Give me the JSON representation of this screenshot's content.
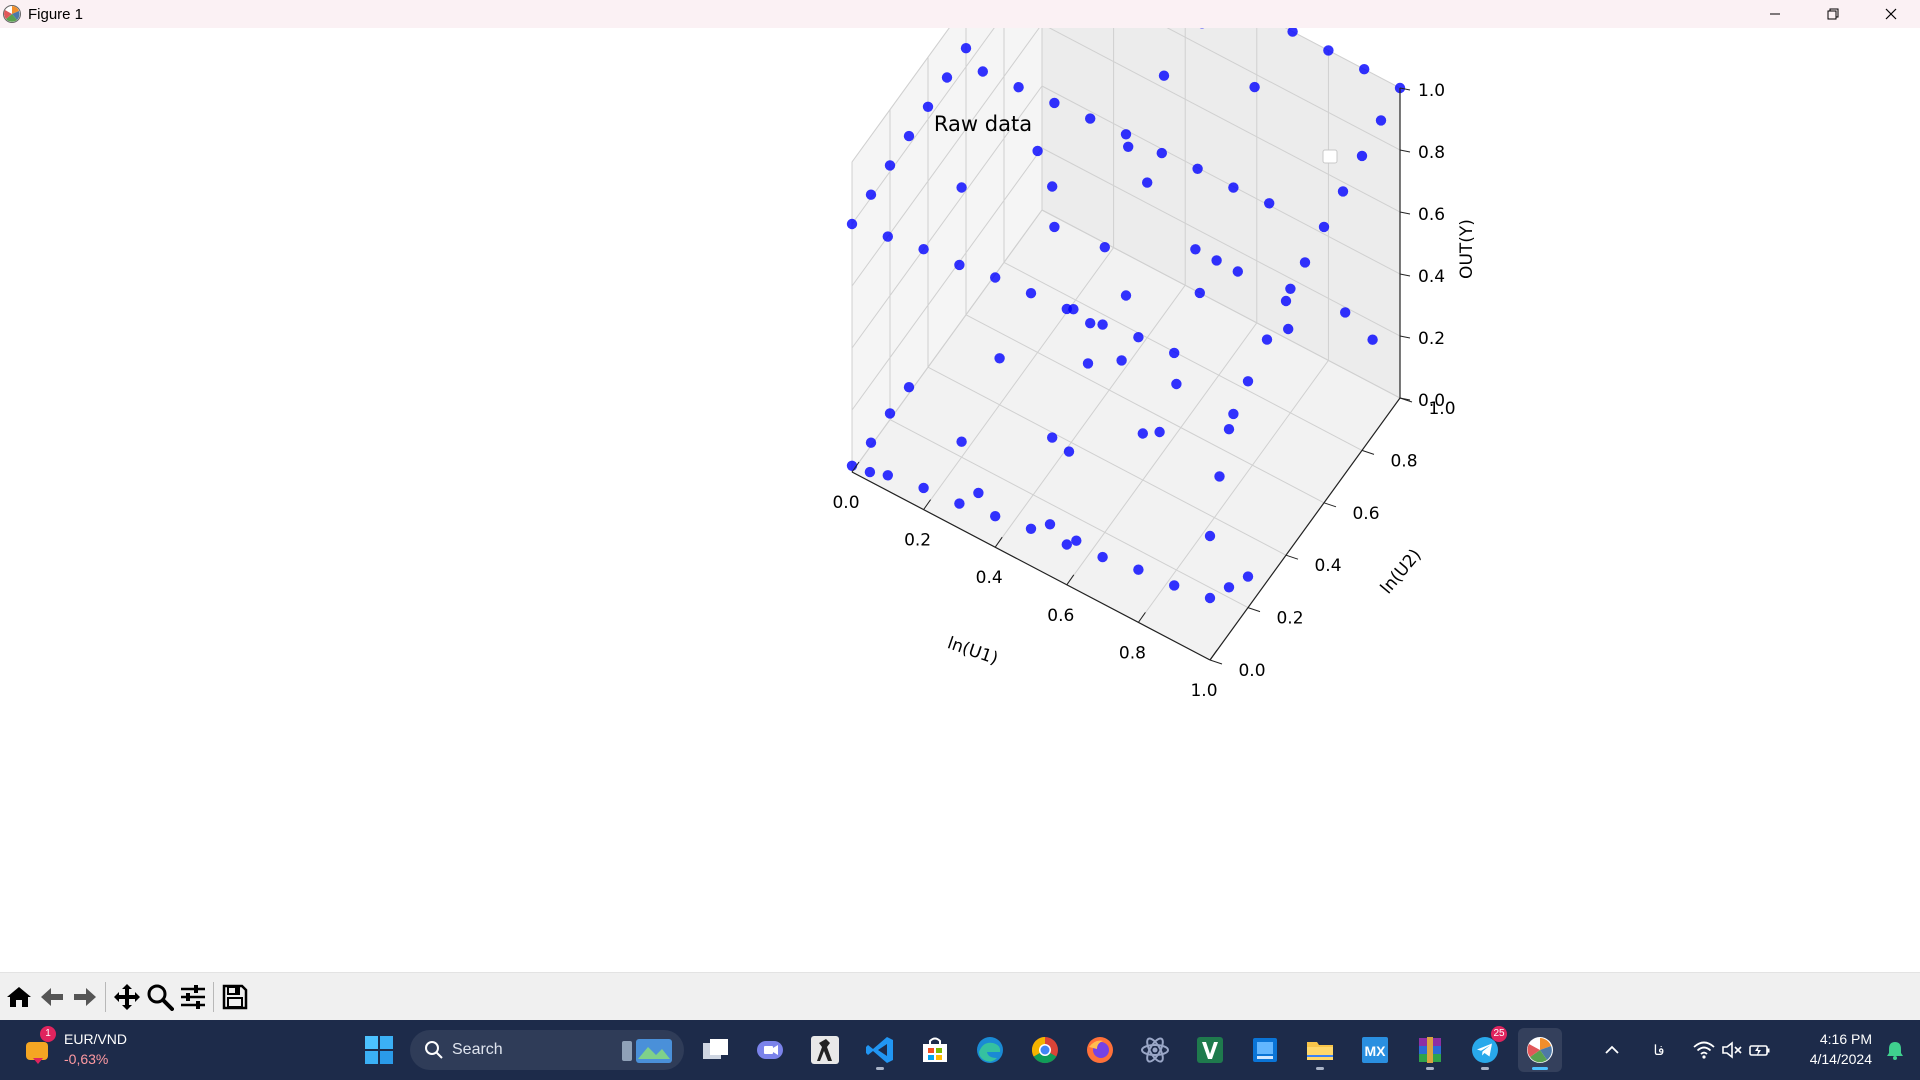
{
  "window": {
    "title": "Figure 1",
    "controls": [
      "minimize",
      "restore",
      "close"
    ]
  },
  "toolbar": {
    "buttons": [
      "home-icon",
      "back-icon",
      "forward-icon",
      "pan-icon",
      "zoom-icon",
      "configure-subplots-icon",
      "save-icon"
    ]
  },
  "chart_data": {
    "type": "scatter",
    "projection": "3d",
    "title": "Raw data",
    "xlabel": "ln(U1)",
    "ylabel": "ln(U2)",
    "zlabel": "OUT(Y)",
    "xlim": [
      0,
      1
    ],
    "ylim": [
      0,
      1
    ],
    "zlim": [
      0,
      1
    ],
    "xticks": [
      "0.0",
      "0.2",
      "0.4",
      "0.6",
      "0.8",
      "1.0"
    ],
    "yticks": [
      "0.0",
      "0.2",
      "0.4",
      "0.6",
      "0.8",
      "1.0"
    ],
    "zticks": [
      "0.0",
      "0.2",
      "0.4",
      "0.6",
      "0.8",
      "1.0"
    ],
    "grid": true,
    "legend": "top-right, empty",
    "marker_color": "#0000ff",
    "series": [
      {
        "points": [
          [
            0.0,
            1.0,
            0.92
          ],
          [
            0.1,
            1.0,
            0.93
          ],
          [
            0.2,
            1.0,
            0.95
          ],
          [
            0.3,
            1.0,
            0.96
          ],
          [
            0.4,
            1.0,
            0.97
          ],
          [
            0.5,
            1.0,
            0.98
          ],
          [
            0.6,
            1.0,
            0.99
          ],
          [
            0.7,
            1.0,
            1.0
          ],
          [
            0.8,
            1.0,
            1.0
          ],
          [
            0.9,
            1.0,
            1.0
          ],
          [
            1.0,
            1.0,
            1.0
          ],
          [
            0.0,
            0.9,
            0.9
          ],
          [
            0.0,
            0.8,
            0.88
          ],
          [
            0.0,
            0.7,
            0.87
          ],
          [
            0.0,
            0.6,
            0.86
          ],
          [
            0.0,
            0.5,
            0.85
          ],
          [
            0.0,
            0.4,
            0.84
          ],
          [
            0.0,
            0.3,
            0.83
          ],
          [
            0.0,
            0.2,
            0.82
          ],
          [
            0.0,
            0.1,
            0.81
          ],
          [
            0.0,
            0.0,
            0.8
          ],
          [
            1.0,
            0.9,
            0.98
          ],
          [
            1.0,
            0.8,
            0.95
          ],
          [
            1.0,
            0.7,
            0.92
          ],
          [
            1.0,
            0.6,
            0.89
          ],
          [
            1.0,
            0.5,
            0.86
          ],
          [
            1.0,
            0.4,
            0.82
          ],
          [
            1.0,
            0.3,
            0.78
          ],
          [
            1.0,
            0.2,
            0.73
          ],
          [
            1.0,
            0.1,
            0.66
          ],
          [
            1.0,
            0.05,
            0.55
          ],
          [
            1.0,
            0.0,
            0.4
          ],
          [
            0.1,
            0.0,
            0.82
          ],
          [
            0.2,
            0.0,
            0.84
          ],
          [
            0.3,
            0.0,
            0.85
          ],
          [
            0.4,
            0.0,
            0.87
          ],
          [
            0.5,
            0.0,
            0.88
          ],
          [
            0.6,
            0.0,
            0.89
          ],
          [
            0.7,
            0.0,
            0.9
          ],
          [
            0.8,
            0.0,
            0.92
          ],
          [
            0.9,
            0.0,
            0.93
          ],
          [
            0.1,
            0.5,
            0.93
          ],
          [
            0.2,
            0.5,
            0.94
          ],
          [
            0.3,
            0.5,
            0.95
          ],
          [
            0.4,
            0.5,
            0.96
          ],
          [
            0.5,
            0.5,
            0.97
          ],
          [
            0.6,
            0.5,
            0.97
          ],
          [
            0.7,
            0.5,
            0.98
          ],
          [
            0.8,
            0.5,
            0.98
          ],
          [
            0.9,
            0.5,
            0.99
          ],
          [
            0.3,
            0.8,
            0.98
          ],
          [
            0.5,
            0.7,
            0.99
          ],
          [
            0.7,
            0.8,
            0.99
          ],
          [
            0.4,
            0.3,
            0.91
          ],
          [
            0.6,
            0.2,
            0.92
          ],
          [
            0.8,
            0.3,
            0.95
          ],
          [
            0.2,
            0.2,
            0.87
          ],
          [
            0.2,
            0.8,
            0.94
          ],
          [
            0.5,
            0.9,
            0.99
          ],
          [
            0.0,
            0.0,
            0.02
          ],
          [
            0.05,
            0.0,
            0.03
          ],
          [
            0.1,
            0.0,
            0.05
          ],
          [
            0.2,
            0.0,
            0.07
          ],
          [
            0.3,
            0.0,
            0.08
          ],
          [
            0.4,
            0.0,
            0.1
          ],
          [
            0.5,
            0.0,
            0.12
          ],
          [
            0.6,
            0.0,
            0.13
          ],
          [
            0.7,
            0.0,
            0.15
          ],
          [
            0.8,
            0.0,
            0.17
          ],
          [
            0.9,
            0.0,
            0.18
          ],
          [
            1.0,
            0.0,
            0.2
          ],
          [
            0.0,
            0.1,
            0.01
          ],
          [
            0.0,
            0.2,
            0.02
          ],
          [
            0.0,
            0.3,
            0.02
          ],
          [
            1.0,
            0.1,
            0.15
          ],
          [
            1.0,
            0.2,
            0.1
          ],
          [
            0.5,
            0.1,
            0.05
          ],
          [
            0.6,
            0.05,
            0.1
          ],
          [
            0.3,
            0.1,
            0.03
          ],
          [
            0.2,
            0.2,
            0.05
          ],
          [
            0.4,
            0.3,
            0.1
          ],
          [
            0.6,
            0.4,
            0.15
          ],
          [
            0.5,
            0.2,
            0.2
          ],
          [
            0.7,
            0.3,
            0.3
          ],
          [
            0.8,
            0.5,
            0.25
          ],
          [
            0.3,
            0.6,
            0.2
          ],
          [
            0.4,
            0.5,
            0.3
          ],
          [
            0.6,
            0.7,
            0.35
          ],
          [
            0.8,
            0.8,
            0.4
          ],
          [
            0.2,
            0.4,
            0.15
          ],
          [
            0.9,
            0.6,
            0.5
          ],
          [
            0.3,
            0.5,
            0.55
          ],
          [
            0.5,
            0.5,
            0.45
          ],
          [
            0.7,
            0.6,
            0.6
          ],
          [
            0.4,
            0.8,
            0.5
          ],
          [
            0.9,
            0.9,
            0.3
          ],
          [
            0.95,
            0.95,
            0.2
          ],
          [
            0.6,
            0.9,
            0.25
          ],
          [
            0.5,
            0.3,
            0.4
          ],
          [
            0.2,
            0.6,
            0.65
          ],
          [
            0.8,
            0.2,
            0.6
          ],
          [
            0.7,
            0.1,
            0.7
          ],
          [
            0.4,
            0.7,
            0.7
          ]
        ]
      }
    ]
  },
  "taskbar": {
    "widget": {
      "pair": "EUR/VND",
      "change": "-0,63%",
      "badge": "1"
    },
    "search_label": "Search",
    "apps": [
      "start-icon",
      "search-field",
      "task-view-icon",
      "chat-icon",
      "counter-strike-icon",
      "vscode-icon",
      "store-icon",
      "edge-icon",
      "chrome-icon",
      "firefox-icon",
      "atom-icon",
      "app-v-icon",
      "app-blue-icon",
      "file-explorer-icon",
      "mx-icon",
      "winrar-icon",
      "telegram-icon",
      "matplotlib-icon"
    ],
    "telegram_badge": "25",
    "tray": {
      "language": "فا"
    },
    "clock": {
      "time": "4:16 PM",
      "date": "4/14/2024"
    }
  }
}
